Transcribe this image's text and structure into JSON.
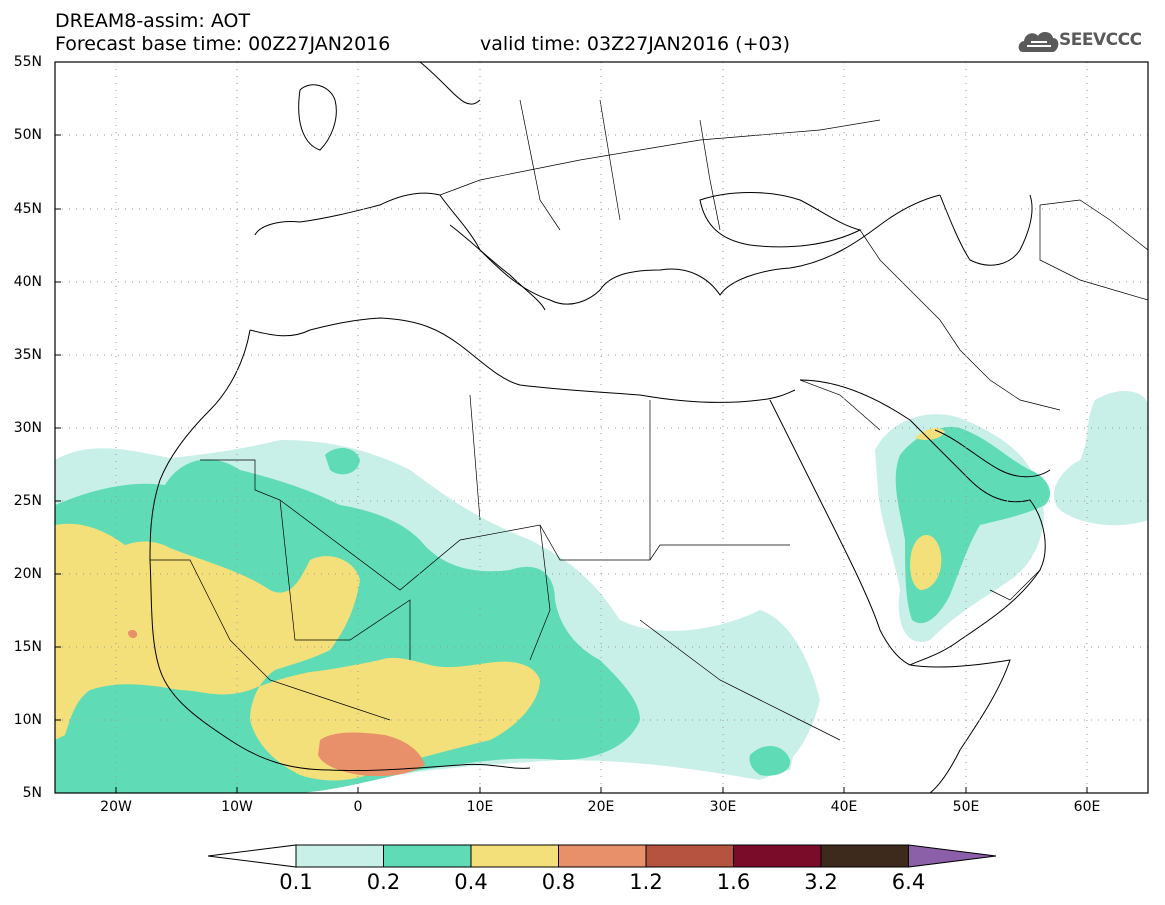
{
  "header": {
    "title": "DREAM8-assim: AOT",
    "base_time": "Forecast base time: 00Z27JAN2016",
    "valid_time": "valid time: 03Z27JAN2016 (+03)"
  },
  "logo": {
    "text": "SEEVCCC",
    "icon": "cloud-icon"
  },
  "map": {
    "lat_labels": [
      "55N",
      "50N",
      "45N",
      "40N",
      "35N",
      "30N",
      "25N",
      "20N",
      "15N",
      "10N",
      "5N"
    ],
    "lon_labels": [
      "20W",
      "10W",
      "0",
      "10E",
      "20E",
      "30E",
      "40E",
      "50E",
      "60E"
    ],
    "grid": true
  },
  "colorbar": {
    "labels": [
      "0.1",
      "0.2",
      "0.4",
      "0.8",
      "1.2",
      "1.6",
      "3.2",
      "6.4"
    ],
    "colors": [
      "#ffffff",
      "#c8efe8",
      "#5fdcb6",
      "#f4e07a",
      "#e8906a",
      "#b55240",
      "#7a0c2a",
      "#3e2a1c",
      "#8b60a8"
    ]
  }
}
